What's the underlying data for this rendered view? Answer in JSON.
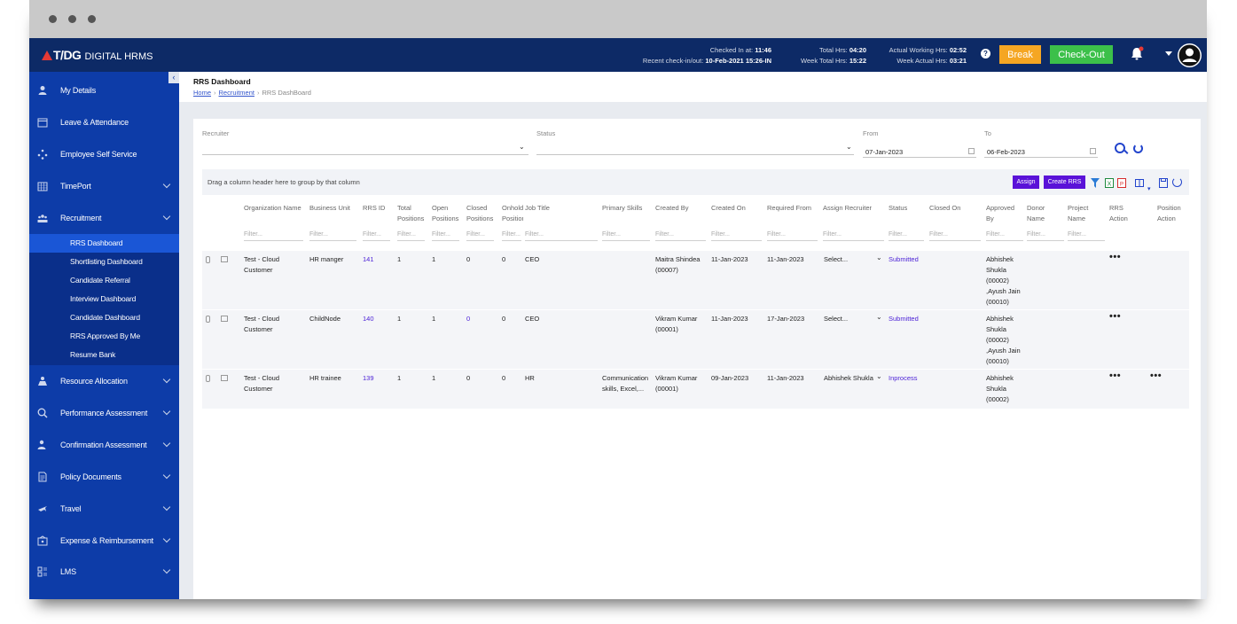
{
  "app": {
    "brand": "T/DG",
    "product": "DIGITAL HRMS"
  },
  "header": {
    "checked_in_label": "Checked In at:",
    "checked_in_value": "11:46",
    "recent_label": "Recent check-in/out:",
    "recent_value": "10-Feb-2021 15:26-IN",
    "total_hrs_label": "Total Hrs:",
    "total_hrs_value": "04:20",
    "week_total_label": "Week Total Hrs:",
    "week_total_value": "15:22",
    "actual_working_label": "Actual Working Hrs:",
    "actual_working_value": "02:52",
    "week_actual_label": "Week Actual Hrs:",
    "week_actual_value": "03:21",
    "help": "?",
    "break_label": "Break",
    "checkout_label": "Check-Out",
    "colors": {
      "break": "#f5a623",
      "checkout": "#3cc04a",
      "topbar": "#0d2a66"
    }
  },
  "sidebar": {
    "collapse": "‹",
    "items": [
      {
        "label": "My Details",
        "icon": "user-icon"
      },
      {
        "label": "Leave & Attendance",
        "icon": "calendar-icon"
      },
      {
        "label": "Employee Self Service",
        "icon": "network-icon"
      },
      {
        "label": "TimePort",
        "icon": "calendar-grid-icon"
      },
      {
        "label": "Recruitment",
        "icon": "people-icon"
      },
      {
        "label": "Resource Allocation",
        "icon": "allocation-icon"
      },
      {
        "label": "Performance Assessment",
        "icon": "search-person-icon"
      },
      {
        "label": "Confirmation Assessment",
        "icon": "person-check-icon"
      },
      {
        "label": "Policy Documents",
        "icon": "document-icon"
      },
      {
        "label": "Travel",
        "icon": "plane-icon"
      },
      {
        "label": "Expense & Reimbursement",
        "icon": "wallet-icon"
      },
      {
        "label": "LMS",
        "icon": "lms-icon"
      }
    ],
    "recruitment_sub": [
      "RRS Dashboard",
      "Shortlisting Dashboard",
      "Candidate Referral",
      "Interview Dashboard",
      "Candidate Dashboard",
      "RRS Approved By Me",
      "Resume Bank"
    ]
  },
  "page": {
    "title": "RRS Dashboard",
    "breadcrumb": [
      "Home",
      "Recruitment",
      "RRS DashBoard"
    ]
  },
  "filters": {
    "recruiter_label": "Recruiter",
    "status_label": "Status",
    "from_label": "From",
    "from_value": "07-Jan-2023",
    "to_label": "To",
    "to_value": "06-Feb-2023"
  },
  "grid": {
    "group_hint": "Drag a column header here to group by that column",
    "assign_label": "Assign",
    "create_label": "Create RRS",
    "filter_placeholder": "Filter...",
    "columns": [
      [
        "Organization Name"
      ],
      [
        "Business Unit"
      ],
      [
        "RRS ID"
      ],
      [
        "Total",
        "Positions"
      ],
      [
        "Open",
        "Positions"
      ],
      [
        "Closed",
        "Positions"
      ],
      [
        "Onhold",
        "Positions"
      ],
      [
        "Job Title"
      ],
      [
        "Primary Skills"
      ],
      [
        "Created By"
      ],
      [
        "Created On"
      ],
      [
        "Required From"
      ],
      [
        "Assign Recruiter"
      ],
      [
        "Status"
      ],
      [
        "Closed On"
      ],
      [
        "Approved",
        "By"
      ],
      [
        "Donor",
        "Name"
      ],
      [
        "Project",
        "Name"
      ],
      [
        "RRS",
        "Action"
      ],
      [
        "Position",
        "Action"
      ]
    ],
    "rows": [
      {
        "org": [
          "Test - Cloud",
          "Customer"
        ],
        "bu": "HR manger",
        "rrs_id": "141",
        "total": "1",
        "open": "1",
        "closed": "0",
        "onhold": "0",
        "job": "CEO",
        "skills": [
          "",
          ""
        ],
        "created_by": [
          "Maitra Shindea",
          "(00007)"
        ],
        "created_on": "11-Jan-2023",
        "required_from": "11-Jan-2023",
        "recruiter": "Select...",
        "status": "Submitted",
        "approved": [
          "Abhishek",
          "Shukla",
          "(00002)",
          ",Ayush Jain",
          "(00010)"
        ],
        "rrs_action": "•••",
        "pos_action": ""
      },
      {
        "org": [
          "Test - Cloud",
          "Customer"
        ],
        "bu": "ChildNode",
        "rrs_id": "140",
        "total": "1",
        "open": "1",
        "closed": "0",
        "onhold": "0",
        "job": "CEO",
        "skills": [
          "",
          ""
        ],
        "created_by": [
          "Vikram Kumar",
          "(00001)"
        ],
        "created_on": "11-Jan-2023",
        "required_from": "17-Jan-2023",
        "recruiter": "Select...",
        "status": "Submitted",
        "approved": [
          "Abhishek",
          "Shukla",
          "(00002)",
          ",Ayush Jain",
          "(00010)"
        ],
        "rrs_action": "•••",
        "pos_action": ""
      },
      {
        "org": [
          "Test - Cloud",
          "Customer"
        ],
        "bu": "HR trainee",
        "rrs_id": "139",
        "total": "1",
        "open": "1",
        "closed": "0",
        "onhold": "0",
        "job": "HR",
        "skills": [
          "Communication",
          "skills, Excel,..."
        ],
        "created_by": [
          "Vikram Kumar",
          "(00001)"
        ],
        "created_on": "09-Jan-2023",
        "required_from": "11-Jan-2023",
        "recruiter": "Abhishek Shukla",
        "status": "Inprocess",
        "approved": [
          "Abhishek",
          "Shukla",
          "(00002)",
          "",
          ""
        ],
        "rrs_action": "•••",
        "pos_action": "•••"
      }
    ]
  }
}
